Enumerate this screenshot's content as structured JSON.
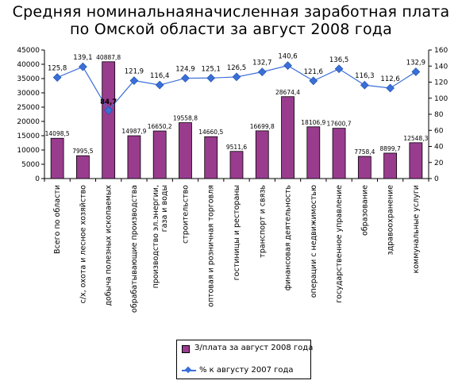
{
  "title_line1": "Средняя номинальнаяначисленная заработная плата",
  "title_line2": "по Омской области за август 2008 года",
  "chart_data": {
    "type": "bar+line",
    "categories": [
      "Всего по области",
      "с/х, охота и лесное хозяйство",
      "добыча полезных ископаемых",
      "обрабатывающие производства",
      "производство эл.энергии, газа и воды",
      "строительство",
      "оптовая и розничная торговля",
      "гостиницы и рестораны",
      "транспорт и связь",
      "финансовая деятельность",
      "операции с недвижимостью",
      "государственное управление",
      "образование",
      "здравоохранение",
      "коммунальные услуги"
    ],
    "series": [
      {
        "name": "З/плата за август 2008 года",
        "type": "bar",
        "axis": "left",
        "color": "#993c8e",
        "values": [
          14098.5,
          7995.5,
          40887.8,
          14987.9,
          16650.2,
          19558.8,
          14660.5,
          9511.6,
          16699.8,
          28674.4,
          18106.9,
          17600.7,
          7758.4,
          8899.7,
          12548.3
        ],
        "labels": [
          "14098,5",
          "7995,5",
          "40887,8",
          "14987,9",
          "16650,2",
          "19558,8",
          "14660,5",
          "9511,6",
          "16699,8",
          "28674,4",
          "18106,9",
          "17600,7",
          "7758,4",
          "8899,7",
          "12548,3"
        ]
      },
      {
        "name": "% к августу 2007 года",
        "type": "line",
        "axis": "right",
        "color": "#3a6fd8",
        "values": [
          125.8,
          139.1,
          84.7,
          121.9,
          116.4,
          124.9,
          125.1,
          126.5,
          132.7,
          140.6,
          121.6,
          136.5,
          116.3,
          112.6,
          132.9
        ],
        "labels": [
          "125,8",
          "139,1",
          "84,7",
          "121,9",
          "116,4",
          "124,9",
          "125,1",
          "126,5",
          "132,7",
          "140,6",
          "121,6",
          "136,5",
          "116,3",
          "112,6",
          "132,9"
        ]
      }
    ],
    "y_left": {
      "min": 0,
      "max": 45000,
      "step": 5000,
      "ticks": [
        "0",
        "5000",
        "10000",
        "15000",
        "20000",
        "25000",
        "30000",
        "35000",
        "40000",
        "45000"
      ]
    },
    "y_right": {
      "min": 0,
      "max": 160,
      "step": 20,
      "ticks": [
        "0",
        "20",
        "40",
        "60",
        "80",
        "100",
        "120",
        "140",
        "160"
      ]
    },
    "grid": false,
    "legend_position": "bottom"
  }
}
